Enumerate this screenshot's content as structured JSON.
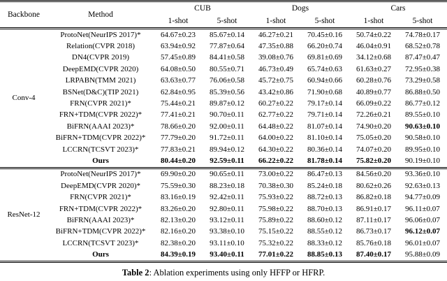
{
  "table": {
    "header": {
      "backbone": "Backbone",
      "method": "Method",
      "groups": [
        "CUB",
        "Dogs",
        "Cars"
      ],
      "shots": [
        "1-shot",
        "5-shot",
        "1-shot",
        "5-shot",
        "1-shot",
        "5-shot"
      ]
    },
    "sections": [
      {
        "backbone": "Conv-4",
        "rows": [
          {
            "method": "ProtoNet(NeurIPS 2017)*",
            "bold_method": false,
            "values": [
              "64.67±0.23",
              "85.67±0.14",
              "46.27±0.21",
              "70.45±0.16",
              "50.74±0.22",
              "74.78±0.17"
            ],
            "bold_cols": []
          },
          {
            "method": "Relation(CVPR 2018)",
            "bold_method": false,
            "values": [
              "63.94±0.92",
              "77.87±0.64",
              "47.35±0.88",
              "66.20±0.74",
              "46.04±0.91",
              "68.52±0.78"
            ],
            "bold_cols": []
          },
          {
            "method": "DN4(CVPR 2019)",
            "bold_method": false,
            "values": [
              "57.45±0.89",
              "84.41±0.58",
              "39.08±0.76",
              "69.81±0.69",
              "34.12±0.68",
              "87.47±0.47"
            ],
            "bold_cols": []
          },
          {
            "method": "DeepEMD(CVPR 2020)",
            "bold_method": false,
            "values": [
              "64.08±0.50",
              "80.55±0.71",
              "46.73±0.49",
              "65.74±0.63",
              "61.63±0.27",
              "72.95±0.38"
            ],
            "bold_cols": []
          },
          {
            "method": "LRPABN(TMM 2021)",
            "bold_method": false,
            "values": [
              "63.63±0.77",
              "76.06±0.58",
              "45.72±0.75",
              "60.94±0.66",
              "60.28±0.76",
              "73.29±0.58"
            ],
            "bold_cols": []
          },
          {
            "method": "BSNet(D&C)(TIP 2021)",
            "bold_method": false,
            "values": [
              "62.84±0.95",
              "85.39±0.56",
              "43.42±0.86",
              "71.90±0.68",
              "40.89±0.77",
              "86.88±0.50"
            ],
            "bold_cols": []
          },
          {
            "method": "FRN(CVPR 2021)*",
            "bold_method": false,
            "values": [
              "75.44±0.21",
              "89.87±0.12",
              "60.27±0.22",
              "79.17±0.14",
              "66.09±0.22",
              "86.77±0.12"
            ],
            "bold_cols": []
          },
          {
            "method": "FRN+TDM(CVPR 2022)*",
            "bold_method": false,
            "values": [
              "77.41±0.21",
              "90.70±0.11",
              "62.77±0.22",
              "79.71±0.14",
              "72.26±0.21",
              "89.55±0.10"
            ],
            "bold_cols": []
          },
          {
            "method": "BiFRN(AAAI 2023)*",
            "bold_method": false,
            "values": [
              "78.66±0.20",
              "92.00±0.11",
              "64.48±0.22",
              "81.07±0.14",
              "74.90±0.20",
              "90.63±0.10"
            ],
            "bold_cols": [
              5
            ]
          },
          {
            "method": "BiFRN+TDM(CVPR 2022)*",
            "bold_method": false,
            "values": [
              "77.79±0.20",
              "91.72±0.11",
              "64.00±0.22",
              "81.10±0.14",
              "75.05±0.20",
              "90.58±0.10"
            ],
            "bold_cols": []
          },
          {
            "method": "LCCRN(TCSVT 2023)*",
            "bold_method": false,
            "values": [
              "77.83±0.21",
              "89.94±0.12",
              "64.30±0.22",
              "80.36±0.14",
              "74.07±0.20",
              "89.95±0.10"
            ],
            "bold_cols": []
          },
          {
            "method": "Ours",
            "bold_method": true,
            "values": [
              "80.44±0.20",
              "92.59±0.11",
              "66.22±0.22",
              "81.78±0.14",
              "75.82±0.20",
              "90.19±0.10"
            ],
            "bold_cols": [
              0,
              1,
              2,
              3,
              4
            ]
          }
        ]
      },
      {
        "backbone": "ResNet-12",
        "rows": [
          {
            "method": "ProtoNet(NeurIPS 2017)*",
            "bold_method": false,
            "values": [
              "69.90±0.20",
              "90.65±0.11",
              "73.00±0.22",
              "86.47±0.13",
              "84.56±0.20",
              "93.36±0.10"
            ],
            "bold_cols": []
          },
          {
            "method": "DeepEMD(CVPR 2020)*",
            "bold_method": false,
            "values": [
              "75.59±0.30",
              "88.23±0.18",
              "70.38±0.30",
              "85.24±0.18",
              "80.62±0.26",
              "92.63±0.13"
            ],
            "bold_cols": []
          },
          {
            "method": "FRN(CVPR 2021)*",
            "bold_method": false,
            "values": [
              "83.16±0.19",
              "92.42±0.11",
              "75.93±0.22",
              "88.72±0.13",
              "86.82±0.18",
              "94.77±0.09"
            ],
            "bold_cols": []
          },
          {
            "method": "FRN+TDM(CVPR 2022)*",
            "bold_method": false,
            "values": [
              "83.26±0.20",
              "92.80±0.11",
              "75.98±0.22",
              "88.70±0.13",
              "86.91±0.17",
              "96.11±0.07"
            ],
            "bold_cols": []
          },
          {
            "method": "BiFRN(AAAI 2023)*",
            "bold_method": false,
            "values": [
              "82.13±0.20",
              "93.12±0.11",
              "75.89±0.22",
              "88.60±0.12",
              "87.11±0.17",
              "96.06±0.07"
            ],
            "bold_cols": []
          },
          {
            "method": "BiFRN+TDM(CVPR 2022)*",
            "bold_method": false,
            "values": [
              "82.16±0.20",
              "93.38±0.10",
              "75.15±0.22",
              "88.55±0.12",
              "86.73±0.17",
              "96.12±0.07"
            ],
            "bold_cols": [
              5
            ]
          },
          {
            "method": "LCCRN(TCSVT 2023)*",
            "bold_method": false,
            "values": [
              "82.38±0.20",
              "93.11±0.10",
              "75.32±0.22",
              "88.33±0.12",
              "85.76±0.18",
              "96.01±0.07"
            ],
            "bold_cols": []
          },
          {
            "method": "Ours",
            "bold_method": true,
            "values": [
              "84.39±0.19",
              "93.40±0.11",
              "77.01±0.22",
              "88.85±0.13",
              "87.40±0.17",
              "95.88±0.09"
            ],
            "bold_cols": [
              0,
              1,
              2,
              3,
              4
            ]
          }
        ]
      }
    ],
    "caption": {
      "label": "Table 2",
      "text": ": Ablation experiments using only HFFP or HFRP."
    }
  }
}
